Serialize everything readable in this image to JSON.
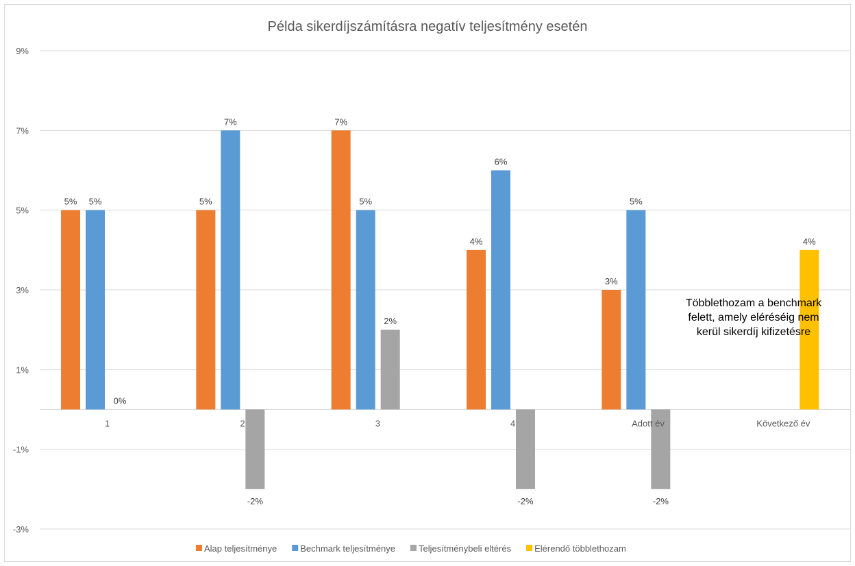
{
  "chart_data": {
    "type": "bar",
    "title": "Példa sikerdíjszámításra negatív teljesítmény esetén",
    "categories": [
      "1",
      "2",
      "3",
      "4",
      "Adott év",
      "Következő év"
    ],
    "series": [
      {
        "name": "Alap teljesítménye",
        "color": "#ED7D31",
        "values": [
          5,
          5,
          7,
          4,
          3,
          null
        ],
        "labels": [
          "5%",
          "5%",
          "7%",
          "4%",
          "3%",
          ""
        ]
      },
      {
        "name": "Bechmark teljesítménye",
        "color": "#5B9BD5",
        "values": [
          5,
          7,
          5,
          6,
          5,
          null
        ],
        "labels": [
          "5%",
          "7%",
          "5%",
          "6%",
          "5%",
          ""
        ]
      },
      {
        "name": "Teljesítménybeli eltérés",
        "color": "#A5A5A5",
        "values": [
          0,
          -2,
          2,
          -2,
          -2,
          null
        ],
        "labels": [
          "0%",
          "-2%",
          "2%",
          "-2%",
          "-2%",
          ""
        ]
      },
      {
        "name": "Elérendő többlethozam",
        "color": "#FFC000",
        "values": [
          null,
          null,
          null,
          null,
          null,
          4
        ],
        "labels": [
          "",
          "",
          "",
          "",
          "",
          "4%"
        ]
      }
    ],
    "y_ticks": [
      9,
      7,
      5,
      3,
      1,
      -1,
      -3
    ],
    "y_tick_labels": [
      "9%",
      "7%",
      "5%",
      "3%",
      "1%",
      "-1%",
      "-3%"
    ],
    "ylim": [
      -3,
      9
    ],
    "grid": true,
    "legend_position": "bottom",
    "annotation": "Többlethozam a benchmark felett, amely eléréséig nem kerül sikerdíj kifizetésre"
  }
}
